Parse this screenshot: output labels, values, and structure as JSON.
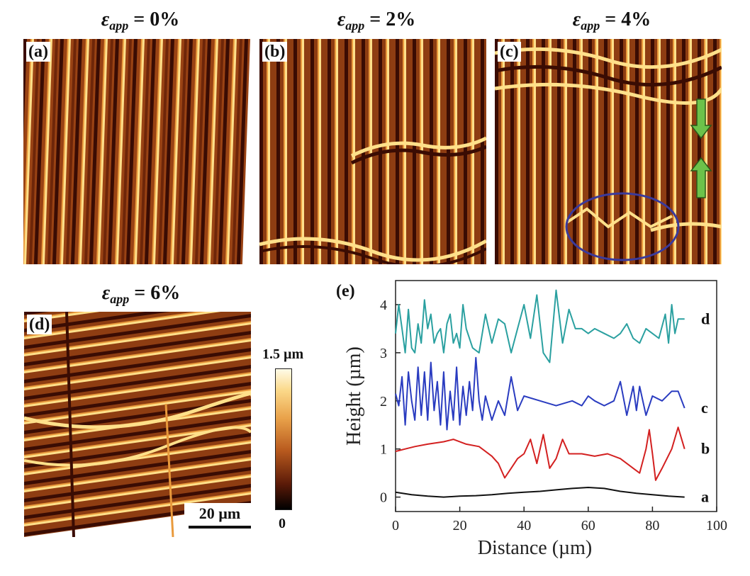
{
  "panels": [
    {
      "id": "a",
      "label": "(a)",
      "title_prefix": "ε",
      "title_sub": "app",
      "title_value": "= 0%"
    },
    {
      "id": "b",
      "label": "(b)",
      "title_prefix": "ε",
      "title_sub": "app",
      "title_value": "= 2%"
    },
    {
      "id": "c",
      "label": "(c)",
      "title_prefix": "ε",
      "title_sub": "app",
      "title_value": "= 4%"
    },
    {
      "id": "d",
      "label": "(d)",
      "title_prefix": "ε",
      "title_sub": "app",
      "title_value": "= 6%"
    }
  ],
  "scale_bar": {
    "label": "20 µm"
  },
  "colorbar": {
    "max_label": "1.5 µm",
    "min_label": "0"
  },
  "colors": {
    "stripe_dark": "#3a0c03",
    "stripe_mid": "#b0511a",
    "stripe_light": "#ffd36a",
    "arrow": "#6cc24a",
    "ellipse": "#3a3a9c"
  },
  "chart_data": {
    "type": "line",
    "panel_label": "(e)",
    "xlabel": "Distance (µm)",
    "ylabel": "Height (µm)",
    "xlim": [
      0,
      100
    ],
    "ylim": [
      -0.3,
      4.5
    ],
    "xticks": [
      0,
      20,
      40,
      60,
      80,
      100
    ],
    "yticks": [
      0,
      1,
      2,
      3,
      4
    ],
    "series": [
      {
        "name": "a",
        "color": "#111111",
        "x": [
          0,
          5,
          10,
          15,
          20,
          25,
          30,
          35,
          40,
          45,
          50,
          55,
          60,
          65,
          70,
          75,
          80,
          85,
          90
        ],
        "y": [
          0.1,
          0.05,
          0.02,
          0.0,
          0.02,
          0.03,
          0.05,
          0.08,
          0.1,
          0.12,
          0.15,
          0.18,
          0.2,
          0.18,
          0.12,
          0.08,
          0.05,
          0.02,
          0.0
        ]
      },
      {
        "name": "b",
        "color": "#d32020",
        "x": [
          0,
          3,
          6,
          10,
          15,
          18,
          22,
          26,
          30,
          32,
          34,
          36,
          38,
          40,
          42,
          44,
          46,
          48,
          50,
          52,
          54,
          58,
          62,
          66,
          70,
          74,
          76,
          78,
          79,
          80,
          81,
          83,
          86,
          88,
          90
        ],
        "y": [
          0.95,
          1.0,
          1.05,
          1.1,
          1.15,
          1.2,
          1.1,
          1.05,
          0.85,
          0.7,
          0.4,
          0.6,
          0.8,
          0.9,
          1.2,
          0.7,
          1.3,
          0.6,
          0.8,
          1.2,
          0.9,
          0.9,
          0.85,
          0.9,
          0.8,
          0.6,
          0.5,
          1.0,
          1.4,
          0.9,
          0.35,
          0.6,
          1.0,
          1.45,
          1.0
        ]
      },
      {
        "name": "c",
        "color": "#2a3cc0",
        "x": [
          0,
          1,
          2,
          3,
          4,
          5,
          6,
          7,
          8,
          9,
          10,
          11,
          12,
          13,
          14,
          15,
          16,
          17,
          18,
          19,
          20,
          21,
          22,
          23,
          24,
          25,
          26,
          27,
          28,
          30,
          32,
          34,
          36,
          38,
          40,
          45,
          50,
          55,
          58,
          60,
          62,
          65,
          68,
          70,
          72,
          74,
          75,
          76,
          78,
          80,
          83,
          86,
          88,
          90
        ],
        "y": [
          2.15,
          1.9,
          2.5,
          1.5,
          2.6,
          2.0,
          1.6,
          2.7,
          1.7,
          2.6,
          1.6,
          2.8,
          1.8,
          2.4,
          1.5,
          2.6,
          1.4,
          2.2,
          1.6,
          2.7,
          1.5,
          2.3,
          1.7,
          2.4,
          1.8,
          2.9,
          2.0,
          1.6,
          2.1,
          1.6,
          2.0,
          1.7,
          2.5,
          1.8,
          2.1,
          2.0,
          1.9,
          2.0,
          1.9,
          2.1,
          2.0,
          1.9,
          2.0,
          2.4,
          1.7,
          2.3,
          1.8,
          2.3,
          1.7,
          2.1,
          2.0,
          2.2,
          2.2,
          1.85
        ]
      },
      {
        "name": "d",
        "color": "#2aa0a0",
        "x": [
          0,
          1,
          2,
          3,
          4,
          5,
          6,
          7,
          8,
          9,
          10,
          11,
          12,
          13,
          14,
          15,
          16,
          17,
          18,
          19,
          20,
          21,
          22,
          24,
          26,
          28,
          30,
          32,
          34,
          36,
          38,
          40,
          42,
          44,
          46,
          48,
          50,
          52,
          54,
          56,
          58,
          60,
          62,
          65,
          68,
          70,
          72,
          74,
          76,
          78,
          80,
          82,
          84,
          85,
          86,
          87,
          88,
          90
        ],
        "y": [
          3.4,
          4.0,
          3.5,
          3.0,
          3.9,
          3.1,
          3.0,
          3.6,
          3.2,
          4.1,
          3.5,
          3.8,
          3.2,
          3.4,
          3.5,
          3.0,
          3.6,
          3.8,
          3.2,
          3.4,
          3.1,
          4.0,
          3.5,
          3.1,
          3.0,
          3.8,
          3.2,
          3.7,
          3.6,
          3.0,
          3.5,
          4.0,
          3.3,
          4.2,
          3.0,
          2.8,
          4.3,
          3.2,
          3.9,
          3.5,
          3.5,
          3.4,
          3.5,
          3.4,
          3.3,
          3.4,
          3.6,
          3.3,
          3.2,
          3.5,
          3.4,
          3.3,
          3.8,
          3.2,
          4.0,
          3.4,
          3.7,
          3.7
        ]
      }
    ]
  }
}
